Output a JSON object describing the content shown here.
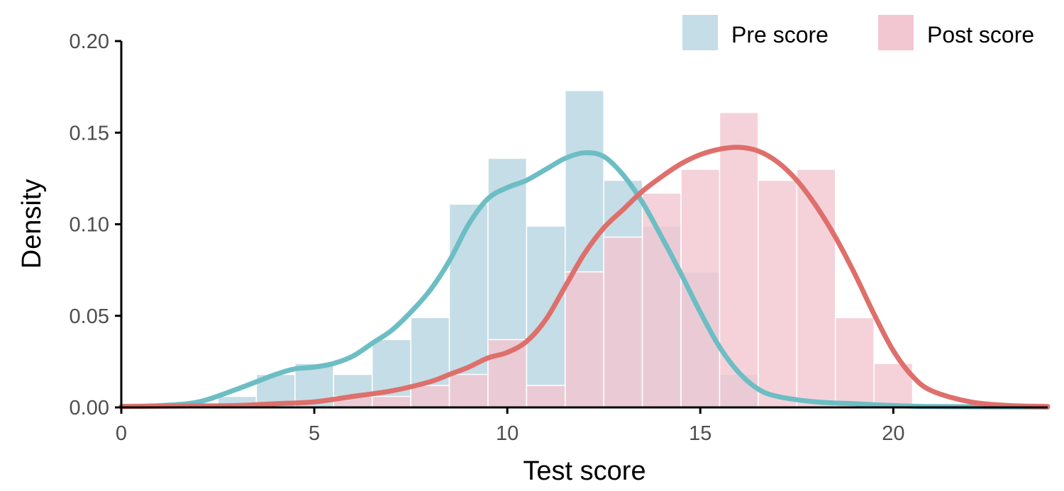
{
  "chart_data": {
    "type": "histogram-density",
    "title": "",
    "xlabel": "Test score",
    "ylabel": "Density",
    "xlim": [
      0,
      24
    ],
    "ylim": [
      0,
      0.2
    ],
    "x_ticks": [
      0,
      5,
      10,
      15,
      20
    ],
    "x_tick_labels": [
      "0",
      "5",
      "10",
      "15",
      "20"
    ],
    "y_ticks": [
      0,
      0.05,
      0.1,
      0.15,
      0.2
    ],
    "y_tick_labels": [
      "0.00",
      "0.05",
      "0.10",
      "0.15",
      "0.20"
    ],
    "bin_width": 1,
    "legend_position": "top-right",
    "grid": false,
    "series": [
      {
        "name": "Pre score",
        "hist_color": "#c5dde6",
        "line_color": "#6cbec4",
        "bins": [
          {
            "x": 3,
            "density": 0.006
          },
          {
            "x": 4,
            "density": 0.018
          },
          {
            "x": 5,
            "density": 0.024
          },
          {
            "x": 6,
            "density": 0.018
          },
          {
            "x": 7,
            "density": 0.037
          },
          {
            "x": 8,
            "density": 0.049
          },
          {
            "x": 9,
            "density": 0.111
          },
          {
            "x": 10,
            "density": 0.136
          },
          {
            "x": 11,
            "density": 0.099
          },
          {
            "x": 12,
            "density": 0.173
          },
          {
            "x": 13,
            "density": 0.124
          },
          {
            "x": 14,
            "density": 0.099
          },
          {
            "x": 15,
            "density": 0.074
          },
          {
            "x": 16,
            "density": 0.018
          }
        ],
        "density_x": [
          0,
          1,
          2,
          3,
          4,
          4.5,
          5,
          5.5,
          6,
          6.5,
          7,
          7.5,
          8,
          8.5,
          9,
          9.5,
          10,
          10.5,
          11,
          11.5,
          12,
          12.5,
          13,
          13.5,
          14,
          14.5,
          15,
          15.5,
          16,
          16.5,
          17,
          18,
          19,
          20,
          21,
          24
        ],
        "density_y": [
          0.0005,
          0.001,
          0.003,
          0.01,
          0.018,
          0.021,
          0.022,
          0.024,
          0.028,
          0.035,
          0.042,
          0.052,
          0.064,
          0.08,
          0.1,
          0.114,
          0.12,
          0.124,
          0.13,
          0.136,
          0.139,
          0.137,
          0.127,
          0.112,
          0.093,
          0.073,
          0.052,
          0.033,
          0.019,
          0.01,
          0.006,
          0.003,
          0.002,
          0.001,
          0.0005,
          0.0001
        ]
      },
      {
        "name": "Post score",
        "hist_color": "#f2c7d1",
        "line_color": "#de6f6b",
        "bins": [
          {
            "x": 6,
            "density": 0.006
          },
          {
            "x": 7,
            "density": 0.006
          },
          {
            "x": 8,
            "density": 0.012
          },
          {
            "x": 9,
            "density": 0.018
          },
          {
            "x": 10,
            "density": 0.037
          },
          {
            "x": 11,
            "density": 0.012
          },
          {
            "x": 12,
            "density": 0.074
          },
          {
            "x": 13,
            "density": 0.093
          },
          {
            "x": 14,
            "density": 0.117
          },
          {
            "x": 15,
            "density": 0.13
          },
          {
            "x": 16,
            "density": 0.161
          },
          {
            "x": 17,
            "density": 0.124
          },
          {
            "x": 18,
            "density": 0.13
          },
          {
            "x": 19,
            "density": 0.049
          },
          {
            "x": 20,
            "density": 0.024
          }
        ],
        "density_x": [
          0,
          2,
          3,
          4,
          5,
          6,
          7,
          8,
          8.5,
          9,
          9.5,
          10,
          10.5,
          11,
          11.5,
          12,
          12.5,
          13,
          13.5,
          14,
          14.5,
          15,
          15.5,
          16,
          16.5,
          17,
          17.5,
          18,
          18.5,
          19,
          19.5,
          20,
          20.5,
          21,
          22,
          23,
          24
        ],
        "density_y": [
          0.0005,
          0.0008,
          0.001,
          0.002,
          0.003,
          0.006,
          0.009,
          0.014,
          0.018,
          0.022,
          0.027,
          0.03,
          0.036,
          0.048,
          0.066,
          0.084,
          0.098,
          0.108,
          0.118,
          0.126,
          0.133,
          0.138,
          0.141,
          0.142,
          0.14,
          0.134,
          0.124,
          0.11,
          0.093,
          0.073,
          0.051,
          0.031,
          0.017,
          0.009,
          0.003,
          0.001,
          0.0005
        ]
      }
    ]
  }
}
